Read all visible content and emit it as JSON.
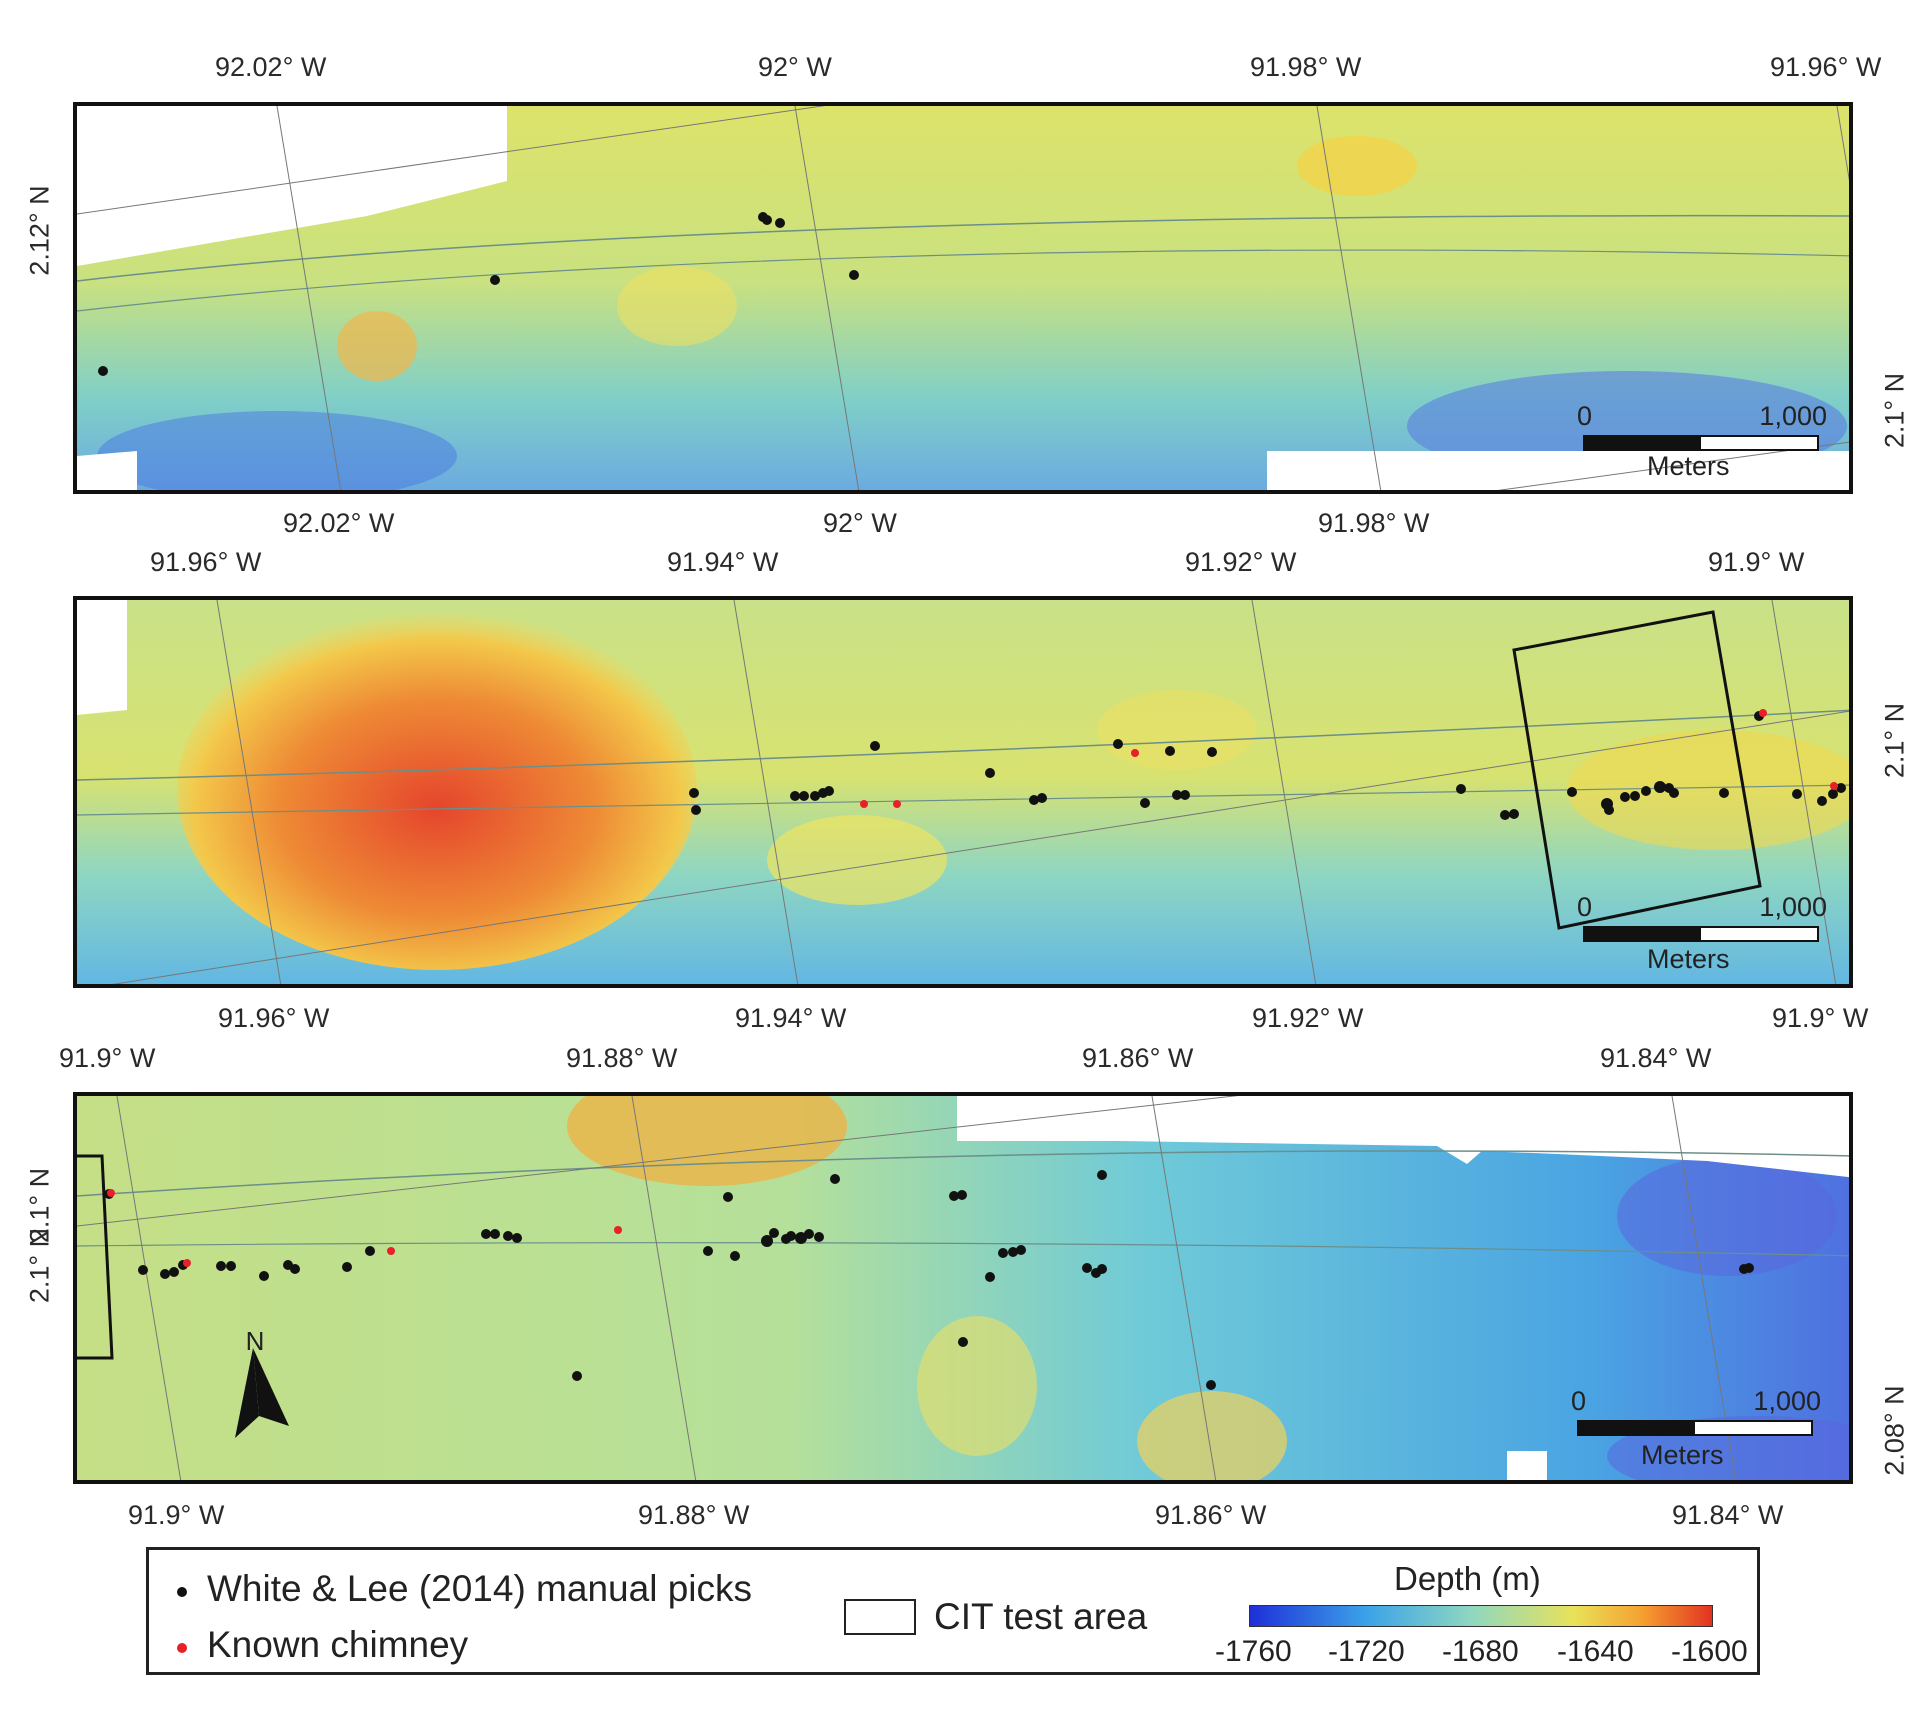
{
  "panels": [
    {
      "id": "p1",
      "top_lon_labels": [
        "92.02° W",
        "92° W",
        "91.98° W",
        "91.96° W"
      ],
      "bottom_lon_labels": [
        "92.02° W",
        "92° W",
        "91.98° W"
      ],
      "left_lat_labels": [
        "2.12° N"
      ],
      "right_lat_labels": [
        "2.1° N"
      ],
      "scale": {
        "start": "0",
        "end": "1,000",
        "unit": "Meters"
      }
    },
    {
      "id": "p2",
      "top_lon_labels": [
        "91.96° W",
        "91.94° W",
        "91.92° W",
        "91.9° W"
      ],
      "bottom_lon_labels": [
        "91.96° W",
        "91.94° W",
        "91.92° W",
        "91.9° W"
      ],
      "left_lat_labels": [],
      "right_lat_labels": [
        "2.1° N"
      ],
      "scale": {
        "start": "0",
        "end": "1,000",
        "unit": "Meters"
      }
    },
    {
      "id": "p3",
      "top_lon_labels": [
        "91.9° W",
        "91.88° W",
        "91.86° W",
        "91.84° W"
      ],
      "bottom_lon_labels": [
        "91.9° W",
        "91.88° W",
        "91.86° W",
        "91.84° W"
      ],
      "left_lat_labels": [
        "2.1° N",
        "2.1° N"
      ],
      "right_lat_labels": [
        "2.08° N"
      ],
      "scale": {
        "start": "0",
        "end": "1,000",
        "unit": "Meters"
      },
      "north_arrow": "N"
    }
  ],
  "legend": {
    "picks_label": "White & Lee (2014) manual picks",
    "chimney_label": "Known chimney",
    "cit_label": "CIT test area",
    "depth_title": "Depth (m)",
    "depth_ticks": [
      "-1760",
      "-1720",
      "-1680",
      "-1640",
      "-1600"
    ],
    "colors": {
      "picks": "#111111",
      "chimney": "#e8202a",
      "ramp": [
        "#1f2fd8",
        "#3aa2e8",
        "#8fd7c0",
        "#e9e25a",
        "#f5a030",
        "#e33322"
      ]
    }
  }
}
